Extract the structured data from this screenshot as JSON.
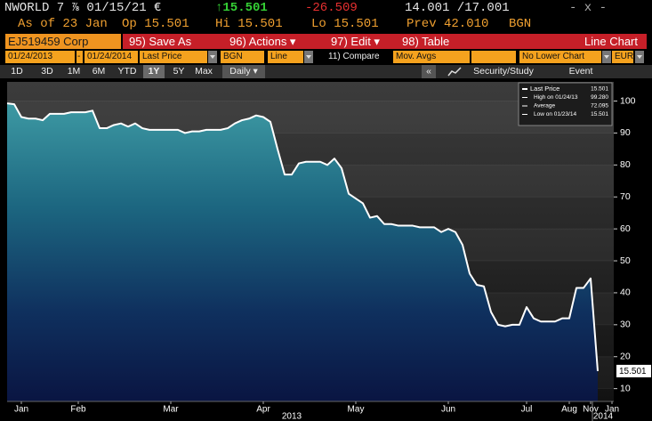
{
  "header": {
    "security": "NWORLD 7 ⅞ 01/15/21 €",
    "last": "↑15.501",
    "change": "-26.509",
    "bid_ask": "14.001 /17.001",
    "window": "- x -",
    "as_of": "As of 23 Jan",
    "open": "Op 15.501",
    "high": "Hi 15.501",
    "low": "Lo 15.501",
    "prev": "Prev 42.010",
    "source": "BGN"
  },
  "toolbar": {
    "ticker": "EJ519459 Corp",
    "buttons": [
      "95) Save As",
      "96) Actions ▾",
      "97) Edit ▾",
      "98) Table"
    ],
    "view": "Line Chart"
  },
  "settings": {
    "start": "01/24/2013",
    "dash": "-",
    "end": "01/24/2014",
    "field": "Last Price",
    "source": "BGN",
    "style": "Line",
    "compare": "11) Compare",
    "studies": "Mov. Avgs",
    "lower": "No Lower Chart",
    "currency": "EUR"
  },
  "periods": {
    "items": [
      "1D",
      "3D",
      "1M",
      "6M",
      "YTD",
      "1Y",
      "5Y",
      "Max"
    ],
    "active": 5,
    "frequency": "Daily ▾"
  },
  "tools": {
    "collapse": "«",
    "study": "Security/Study",
    "event": "Event"
  },
  "chart_data": {
    "type": "line",
    "categories": [
      null,
      null,
      "Jan",
      null,
      null,
      null,
      null,
      null,
      null,
      null,
      "Feb",
      null,
      null,
      null,
      null,
      null,
      null,
      null,
      null,
      null,
      null,
      null,
      null,
      "Mar",
      null,
      null,
      null,
      null,
      null,
      null,
      null,
      null,
      null,
      null,
      null,
      null,
      "Apr",
      null,
      null,
      null,
      null,
      null,
      null,
      null,
      null,
      null,
      null,
      null,
      null,
      "May",
      null,
      null,
      null,
      null,
      null,
      null,
      null,
      null,
      null,
      null,
      null,
      null,
      "Jun",
      null,
      null,
      null,
      null,
      null,
      null,
      null,
      null,
      null,
      null,
      "Jul",
      null,
      null,
      null,
      null,
      null,
      "Aug",
      null,
      null,
      "Nov",
      null,
      null,
      "Jan"
    ],
    "values": [
      99.28,
      99,
      95,
      94.5,
      94.5,
      94,
      96,
      96,
      96,
      96.5,
      96.5,
      96.5,
      97,
      91.5,
      91.5,
      92.5,
      93,
      92,
      93,
      91.5,
      91,
      91,
      91,
      91,
      91,
      90,
      90.5,
      90.5,
      91,
      91,
      91,
      91.5,
      93,
      94,
      94.5,
      95.5,
      95,
      93.5,
      85,
      77,
      77,
      80.5,
      81,
      81,
      81,
      80,
      82,
      79,
      71,
      69.5,
      68,
      63.5,
      64,
      61.5,
      61.5,
      61,
      61,
      61,
      60.5,
      60.5,
      60.5,
      59,
      60,
      59,
      55,
      46,
      42.5,
      42,
      34,
      30,
      29.5,
      30,
      30,
      35.5,
      32,
      31,
      31,
      31,
      32,
      32,
      41.5,
      41.5,
      44.5,
      15.501,
      null,
      null
    ],
    "color": "#ffffff",
    "x_group_labels": [
      "2013",
      "2014"
    ],
    "ylim": [
      6,
      106
    ],
    "yticks": [
      10,
      20,
      30,
      40,
      50,
      60,
      70,
      80,
      90,
      100
    ],
    "legend_entries": [
      {
        "label": "Last Price",
        "value": "15.501"
      },
      {
        "label": "High on 01/24/13",
        "value": "99.280"
      },
      {
        "label": "Average",
        "value": "72.095"
      },
      {
        "label": "Low on 01/23/14",
        "value": "15.501"
      }
    ],
    "grid": true
  }
}
